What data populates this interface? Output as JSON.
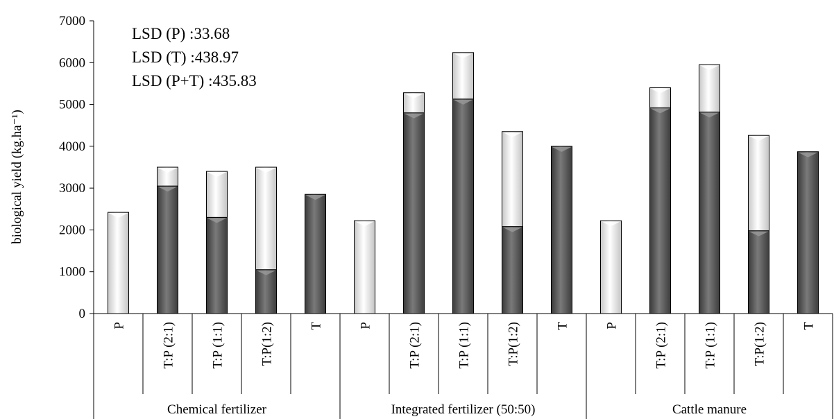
{
  "chart_data": {
    "type": "bar",
    "stacked": true,
    "title": "",
    "ylabel": "biological yield (kg.ha⁻¹)",
    "xlabel": "",
    "ylim": [
      0,
      7000
    ],
    "yticks": [
      0,
      1000,
      2000,
      3000,
      4000,
      5000,
      6000,
      7000
    ],
    "legend": "none",
    "grid": false,
    "groups": [
      {
        "name": "Chemical fertilizer",
        "categories": [
          "P",
          "T:P (2:1)",
          "T:P (1:1)",
          "T:P(1:2)",
          "T"
        ]
      },
      {
        "name": "Integrated fertilizer (50:50)",
        "categories": [
          "P",
          "T:P (2:1)",
          "T:P (1:1)",
          "T:P(1:2)",
          "T"
        ]
      },
      {
        "name": "Cattle manure",
        "categories": [
          "P",
          "T:P (2:1)",
          "T:P (1:1)",
          "T:P(1:2)",
          "T"
        ]
      }
    ],
    "series": [
      {
        "color": "#5f5f5f",
        "values": [
          0,
          3050,
          2300,
          1050,
          2850,
          0,
          4800,
          5130,
          2080,
          4000,
          0,
          4920,
          4820,
          1980,
          3870
        ]
      },
      {
        "color": "#ececec",
        "values": [
          2420,
          450,
          1100,
          2450,
          0,
          2220,
          480,
          1110,
          2270,
          0,
          2220,
          480,
          1130,
          2280,
          0
        ]
      }
    ],
    "annotations": [
      "LSD (P) :33.68",
      "LSD (T) :438.97",
      "LSD (P+T) :435.83"
    ]
  }
}
